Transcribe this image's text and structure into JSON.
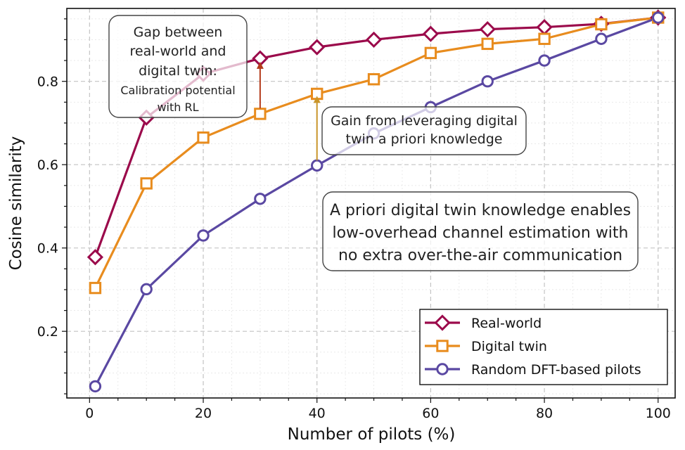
{
  "chart_data": {
    "type": "line",
    "xlabel": "Number of pilots (%)",
    "ylabel": "Cosine similarity",
    "xlim": [
      -4,
      103
    ],
    "ylim": [
      0.04,
      0.975
    ],
    "xticks": [
      0,
      20,
      40,
      60,
      80,
      100
    ],
    "yticks": [
      0.2,
      0.4,
      0.6,
      0.8
    ],
    "xtick_labels": [
      "0",
      "20",
      "40",
      "60",
      "80",
      "100"
    ],
    "ytick_labels": [
      "0.2",
      "0.4",
      "0.6",
      "0.8"
    ],
    "grid": true,
    "legend_position": "bottom-right",
    "series": [
      {
        "name": "Real-world",
        "color": "#9b0a4b",
        "marker": "diamond",
        "x": [
          1,
          10,
          20,
          30,
          40,
          50,
          60,
          70,
          80,
          90,
          100
        ],
        "y": [
          0.378,
          0.713,
          0.818,
          0.855,
          0.882,
          0.9,
          0.914,
          0.925,
          0.93,
          0.938,
          0.953
        ]
      },
      {
        "name": "Digital twin",
        "color": "#e88c1e",
        "marker": "square",
        "x": [
          1,
          10,
          20,
          30,
          40,
          50,
          60,
          70,
          80,
          90,
          100
        ],
        "y": [
          0.304,
          0.555,
          0.665,
          0.722,
          0.77,
          0.805,
          0.868,
          0.89,
          0.902,
          0.937,
          0.953
        ]
      },
      {
        "name": "Random DFT-based pilots",
        "color": "#5a48a2",
        "marker": "circle",
        "x": [
          1,
          10,
          20,
          30,
          40,
          50,
          60,
          70,
          80,
          90,
          100
        ],
        "y": [
          0.068,
          0.301,
          0.43,
          0.518,
          0.598,
          0.675,
          0.738,
          0.8,
          0.85,
          0.902,
          0.953
        ]
      }
    ],
    "annotations": [
      {
        "key": "gap",
        "lines": [
          "Gap between",
          "real-world and",
          "digital twin:",
          "Calibration potential",
          "with RL"
        ],
        "arrow_color": "#b33a1a",
        "arrow_x": 30,
        "arrow_from": 0.735,
        "arrow_to": 0.847
      },
      {
        "key": "gain",
        "lines": [
          "Gain from leveraging digital",
          "twin a priori knowledge"
        ],
        "arrow_color": "#c9952a",
        "arrow_x": 40,
        "arrow_from": 0.61,
        "arrow_to": 0.765
      },
      {
        "key": "note",
        "lines": [
          "A priori digital twin knowledge enables",
          "low-overhead channel estimation with",
          "no extra over-the-air communication"
        ]
      }
    ]
  }
}
